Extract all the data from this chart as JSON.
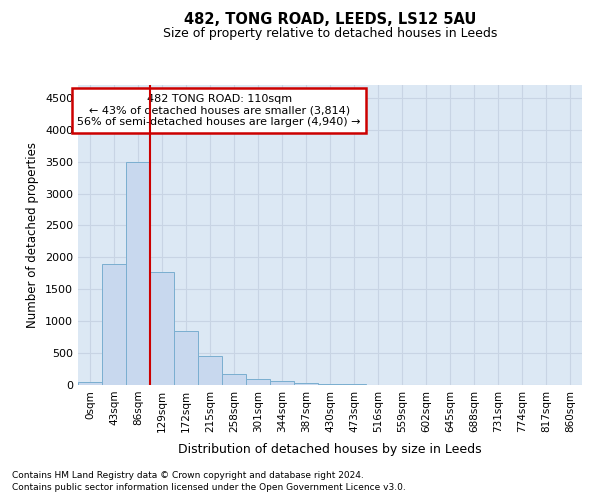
{
  "title1": "482, TONG ROAD, LEEDS, LS12 5AU",
  "title2": "Size of property relative to detached houses in Leeds",
  "xlabel": "Distribution of detached houses by size in Leeds",
  "ylabel": "Number of detached properties",
  "bar_color": "#c8d8ee",
  "bar_edge_color": "#7aaed0",
  "annotation_box_color": "#cc0000",
  "vline_color": "#cc0000",
  "grid_color": "#c8d4e4",
  "bg_color": "#dce8f4",
  "fig_bg_color": "#ffffff",
  "categories": [
    "0sqm",
    "43sqm",
    "86sqm",
    "129sqm",
    "172sqm",
    "215sqm",
    "258sqm",
    "301sqm",
    "344sqm",
    "387sqm",
    "430sqm",
    "473sqm",
    "516sqm",
    "559sqm",
    "602sqm",
    "645sqm",
    "688sqm",
    "731sqm",
    "774sqm",
    "817sqm",
    "860sqm"
  ],
  "bar_heights": [
    50,
    1900,
    3500,
    1775,
    850,
    450,
    175,
    90,
    55,
    30,
    15,
    8,
    5,
    3,
    2,
    2,
    1,
    1,
    1,
    1,
    0
  ],
  "vline_position": 2.5,
  "annotation_line1": "482 TONG ROAD: 110sqm",
  "annotation_line2": "← 43% of detached houses are smaller (3,814)",
  "annotation_line3": "56% of semi-detached houses are larger (4,940) →",
  "ylim": [
    0,
    4700
  ],
  "yticks": [
    0,
    500,
    1000,
    1500,
    2000,
    2500,
    3000,
    3500,
    4000,
    4500
  ],
  "footnote1": "Contains HM Land Registry data © Crown copyright and database right 2024.",
  "footnote2": "Contains public sector information licensed under the Open Government Licence v3.0."
}
